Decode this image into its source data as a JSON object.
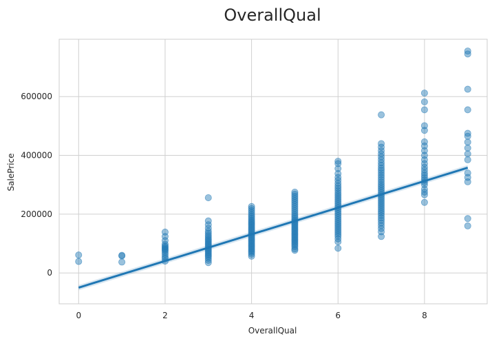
{
  "chart_data": {
    "type": "scatter",
    "title": "OverallQual",
    "xlabel": "OverallQual",
    "ylabel": "SalePrice",
    "xlim": [
      -0.45,
      9.45
    ],
    "ylim": [
      -105000,
      795000
    ],
    "xticks": [
      0,
      2,
      4,
      6,
      8
    ],
    "yticks": [
      0,
      200000,
      400000,
      600000
    ],
    "grid": true,
    "point_color": "#1f77b4",
    "regression_line": {
      "color": "#1f77b4",
      "points": [
        [
          0,
          -50000
        ],
        [
          9,
          358000
        ]
      ],
      "ci_halfwidth": 9000
    },
    "series": [
      {
        "points": [
          [
            0,
            61000
          ],
          [
            0,
            39000
          ],
          [
            1,
            60000
          ],
          [
            1,
            58000
          ],
          [
            1,
            37000
          ],
          [
            2,
            139000
          ],
          [
            2,
            124000
          ],
          [
            2,
            110000
          ],
          [
            2,
            98000
          ],
          [
            2,
            92000
          ],
          [
            2,
            88000
          ],
          [
            2,
            84000
          ],
          [
            2,
            80000
          ],
          [
            2,
            76000
          ],
          [
            2,
            70000
          ],
          [
            2,
            63000
          ],
          [
            2,
            55000
          ],
          [
            2,
            49000
          ],
          [
            2,
            40000
          ],
          [
            3,
            256000
          ],
          [
            3,
            177000
          ],
          [
            3,
            164000
          ],
          [
            3,
            152000
          ],
          [
            3,
            142000
          ],
          [
            3,
            135000
          ],
          [
            3,
            128000
          ],
          [
            3,
            122000
          ],
          [
            3,
            116000
          ],
          [
            3,
            111000
          ],
          [
            3,
            106000
          ],
          [
            3,
            101000
          ],
          [
            3,
            96000
          ],
          [
            3,
            91000
          ],
          [
            3,
            86000
          ],
          [
            3,
            81000
          ],
          [
            3,
            76000
          ],
          [
            3,
            71000
          ],
          [
            3,
            66000
          ],
          [
            3,
            61000
          ],
          [
            3,
            56000
          ],
          [
            3,
            50000
          ],
          [
            3,
            43000
          ],
          [
            3,
            35000
          ],
          [
            4,
            226000
          ],
          [
            4,
            219000
          ],
          [
            4,
            212000
          ],
          [
            4,
            205000
          ],
          [
            4,
            198000
          ],
          [
            4,
            192000
          ],
          [
            4,
            186000
          ],
          [
            4,
            180000
          ],
          [
            4,
            175000
          ],
          [
            4,
            170000
          ],
          [
            4,
            165000
          ],
          [
            4,
            160000
          ],
          [
            4,
            155000
          ],
          [
            4,
            150000
          ],
          [
            4,
            145000
          ],
          [
            4,
            140000
          ],
          [
            4,
            135000
          ],
          [
            4,
            130000
          ],
          [
            4,
            125000
          ],
          [
            4,
            120000
          ],
          [
            4,
            115000
          ],
          [
            4,
            110000
          ],
          [
            4,
            105000
          ],
          [
            4,
            100000
          ],
          [
            4,
            95000
          ],
          [
            4,
            90000
          ],
          [
            4,
            85000
          ],
          [
            4,
            80000
          ],
          [
            4,
            75000
          ],
          [
            4,
            70000
          ],
          [
            4,
            64000
          ],
          [
            4,
            57000
          ],
          [
            5,
            275000
          ],
          [
            5,
            268000
          ],
          [
            5,
            261000
          ],
          [
            5,
            254000
          ],
          [
            5,
            247000
          ],
          [
            5,
            240000
          ],
          [
            5,
            233000
          ],
          [
            5,
            226000
          ],
          [
            5,
            219000
          ],
          [
            5,
            212000
          ],
          [
            5,
            205000
          ],
          [
            5,
            198000
          ],
          [
            5,
            192000
          ],
          [
            5,
            186000
          ],
          [
            5,
            180000
          ],
          [
            5,
            175000
          ],
          [
            5,
            170000
          ],
          [
            5,
            165000
          ],
          [
            5,
            160000
          ],
          [
            5,
            155000
          ],
          [
            5,
            150000
          ],
          [
            5,
            145000
          ],
          [
            5,
            140000
          ],
          [
            5,
            135000
          ],
          [
            5,
            130000
          ],
          [
            5,
            125000
          ],
          [
            5,
            120000
          ],
          [
            5,
            115000
          ],
          [
            5,
            110000
          ],
          [
            5,
            105000
          ],
          [
            5,
            100000
          ],
          [
            5,
            95000
          ],
          [
            5,
            89000
          ],
          [
            5,
            82000
          ],
          [
            5,
            77000
          ],
          [
            6,
            380000
          ],
          [
            6,
            372000
          ],
          [
            6,
            355000
          ],
          [
            6,
            338000
          ],
          [
            6,
            325000
          ],
          [
            6,
            315000
          ],
          [
            6,
            305000
          ],
          [
            6,
            296000
          ],
          [
            6,
            288000
          ],
          [
            6,
            280000
          ],
          [
            6,
            272000
          ],
          [
            6,
            265000
          ],
          [
            6,
            258000
          ],
          [
            6,
            251000
          ],
          [
            6,
            244000
          ],
          [
            6,
            237000
          ],
          [
            6,
            230000
          ],
          [
            6,
            223000
          ],
          [
            6,
            216000
          ],
          [
            6,
            209000
          ],
          [
            6,
            202000
          ],
          [
            6,
            195000
          ],
          [
            6,
            188000
          ],
          [
            6,
            181000
          ],
          [
            6,
            174000
          ],
          [
            6,
            167000
          ],
          [
            6,
            160000
          ],
          [
            6,
            153000
          ],
          [
            6,
            146000
          ],
          [
            6,
            139000
          ],
          [
            6,
            132000
          ],
          [
            6,
            125000
          ],
          [
            6,
            116000
          ],
          [
            6,
            106000
          ],
          [
            6,
            84000
          ],
          [
            7,
            538000
          ],
          [
            7,
            440000
          ],
          [
            7,
            428000
          ],
          [
            7,
            416000
          ],
          [
            7,
            405000
          ],
          [
            7,
            395000
          ],
          [
            7,
            385000
          ],
          [
            7,
            375000
          ],
          [
            7,
            366000
          ],
          [
            7,
            357000
          ],
          [
            7,
            349000
          ],
          [
            7,
            341000
          ],
          [
            7,
            333000
          ],
          [
            7,
            325000
          ],
          [
            7,
            317000
          ],
          [
            7,
            309000
          ],
          [
            7,
            301000
          ],
          [
            7,
            294000
          ],
          [
            7,
            287000
          ],
          [
            7,
            280000
          ],
          [
            7,
            273000
          ],
          [
            7,
            266000
          ],
          [
            7,
            259000
          ],
          [
            7,
            252000
          ],
          [
            7,
            245000
          ],
          [
            7,
            238000
          ],
          [
            7,
            231000
          ],
          [
            7,
            224000
          ],
          [
            7,
            217000
          ],
          [
            7,
            210000
          ],
          [
            7,
            203000
          ],
          [
            7,
            195000
          ],
          [
            7,
            187000
          ],
          [
            7,
            179000
          ],
          [
            7,
            170000
          ],
          [
            7,
            161000
          ],
          [
            7,
            151000
          ],
          [
            7,
            140000
          ],
          [
            7,
            124000
          ],
          [
            8,
            612000
          ],
          [
            8,
            582000
          ],
          [
            8,
            555000
          ],
          [
            8,
            501000
          ],
          [
            8,
            485000
          ],
          [
            8,
            446000
          ],
          [
            8,
            432000
          ],
          [
            8,
            416000
          ],
          [
            8,
            400000
          ],
          [
            8,
            385000
          ],
          [
            8,
            372000
          ],
          [
            8,
            360000
          ],
          [
            8,
            350000
          ],
          [
            8,
            340000
          ],
          [
            8,
            332000
          ],
          [
            8,
            324000
          ],
          [
            8,
            316000
          ],
          [
            8,
            308000
          ],
          [
            8,
            300000
          ],
          [
            8,
            285000
          ],
          [
            8,
            275000
          ],
          [
            8,
            266000
          ],
          [
            8,
            240000
          ],
          [
            9,
            755000
          ],
          [
            9,
            745000
          ],
          [
            9,
            625000
          ],
          [
            9,
            555000
          ],
          [
            9,
            475000
          ],
          [
            9,
            465000
          ],
          [
            9,
            445000
          ],
          [
            9,
            425000
          ],
          [
            9,
            405000
          ],
          [
            9,
            385000
          ],
          [
            9,
            340000
          ],
          [
            9,
            325000
          ],
          [
            9,
            310000
          ],
          [
            9,
            185000
          ],
          [
            9,
            160000
          ]
        ]
      }
    ]
  }
}
